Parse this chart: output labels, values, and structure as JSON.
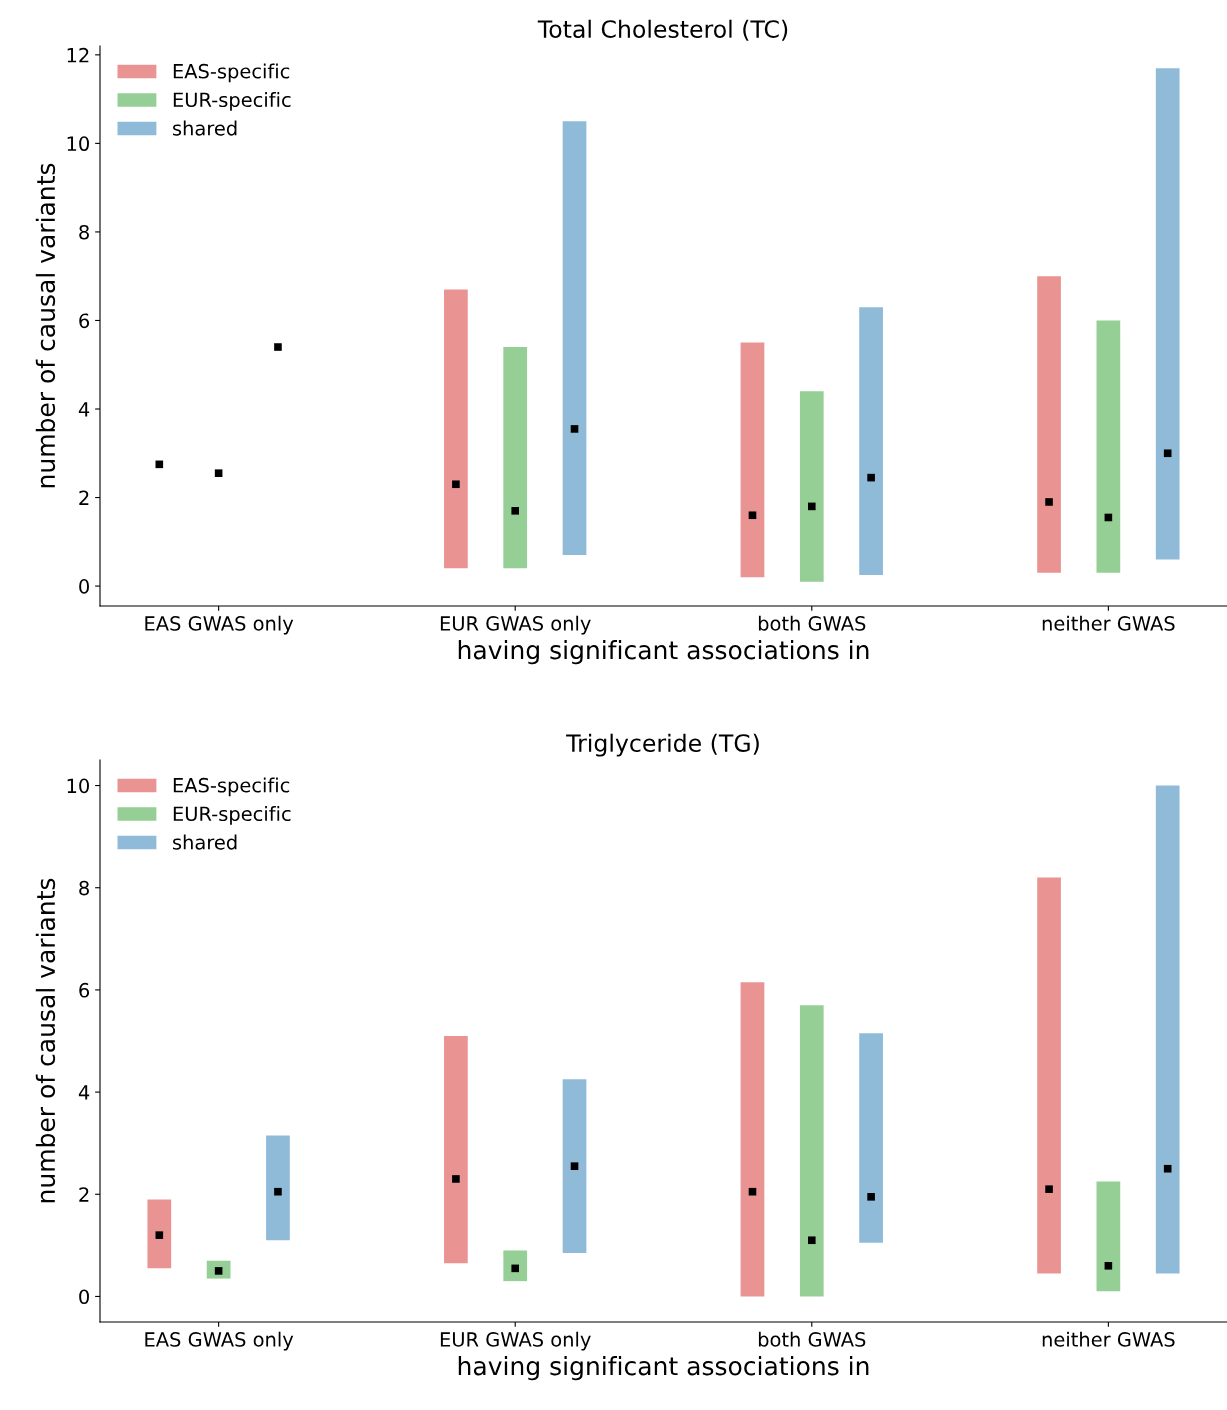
{
  "chart_data": [
    {
      "type": "bar",
      "title": "Total Cholesterol (TC)",
      "xlabel": "having significant associations in",
      "ylabel": "number of causal variants",
      "categories": [
        null,
        "EAS GWAS only",
        null,
        null,
        null,
        null,
        "EUR GWAS only",
        null,
        null,
        null,
        null,
        "both GWAS",
        null,
        null,
        null,
        null,
        "neither GWAS",
        null
      ],
      "ylim": [
        -0.45,
        12.2
      ],
      "yticks": [
        0,
        2,
        4,
        6,
        8,
        10,
        12
      ],
      "grid": false,
      "legend": "top left",
      "series": [
        {
          "name": "EAS-specific",
          "color": "#ea9393",
          "base": [
            null,
            null,
            null,
            null,
            null,
            0.4,
            null,
            null,
            null,
            null,
            0.2,
            null,
            null,
            null,
            null,
            0.3,
            null,
            null
          ],
          "values": [
            null,
            null,
            null,
            null,
            null,
            6.3,
            null,
            null,
            null,
            null,
            5.3,
            null,
            null,
            null,
            null,
            6.7,
            null,
            null
          ]
        },
        {
          "name": "EUR-specific",
          "color": "#95cf95",
          "base": [
            null,
            null,
            null,
            null,
            null,
            null,
            0.4,
            null,
            null,
            null,
            null,
            0.1,
            null,
            null,
            null,
            null,
            0.3,
            null
          ],
          "values": [
            null,
            null,
            null,
            null,
            null,
            null,
            5.0,
            null,
            null,
            null,
            null,
            4.3,
            null,
            null,
            null,
            null,
            5.7,
            null
          ]
        },
        {
          "name": "shared",
          "color": "#8fbbd9",
          "base": [
            null,
            null,
            null,
            null,
            null,
            null,
            null,
            0.7,
            null,
            null,
            null,
            null,
            0.25,
            null,
            null,
            null,
            null,
            0.6
          ],
          "values": [
            null,
            null,
            null,
            null,
            null,
            null,
            null,
            9.8,
            null,
            null,
            null,
            null,
            6.05,
            null,
            null,
            null,
            null,
            11.1
          ]
        },
        {
          "type": "scatter",
          "color": "#000000",
          "marker": "square",
          "values": [
            2.75,
            2.55,
            5.4,
            null,
            null,
            2.3,
            1.7,
            3.55,
            null,
            null,
            1.6,
            1.8,
            2.45,
            null,
            null,
            1.9,
            1.55,
            3.0
          ]
        }
      ]
    },
    {
      "type": "bar",
      "title": "Triglyceride (TG)",
      "xlabel": "having significant associations in",
      "ylabel": "number of causal variants",
      "categories": [
        null,
        "EAS GWAS only",
        null,
        null,
        null,
        null,
        "EUR GWAS only",
        null,
        null,
        null,
        null,
        "both GWAS",
        null,
        null,
        null,
        null,
        "neither GWAS",
        null
      ],
      "ylim": [
        -0.5,
        10.5
      ],
      "yticks": [
        0,
        2,
        4,
        6,
        8,
        10
      ],
      "grid": false,
      "legend": "top left",
      "series": [
        {
          "name": "EAS-specific",
          "color": "#ea9393",
          "base": [
            0.55,
            null,
            null,
            null,
            null,
            0.65,
            null,
            null,
            null,
            null,
            0.0,
            null,
            null,
            null,
            null,
            0.45,
            null,
            null
          ],
          "values": [
            1.35,
            null,
            null,
            null,
            null,
            4.45,
            null,
            null,
            null,
            null,
            6.15,
            null,
            null,
            null,
            null,
            7.75,
            null,
            null
          ]
        },
        {
          "name": "EUR-specific",
          "color": "#95cf95",
          "base": [
            null,
            0.35,
            null,
            null,
            null,
            null,
            0.3,
            null,
            null,
            null,
            null,
            0.0,
            null,
            null,
            null,
            null,
            0.1,
            null
          ],
          "values": [
            null,
            0.35,
            null,
            null,
            null,
            null,
            0.6,
            null,
            null,
            null,
            null,
            5.7,
            null,
            null,
            null,
            null,
            2.15,
            null
          ]
        },
        {
          "name": "shared",
          "color": "#8fbbd9",
          "base": [
            null,
            null,
            1.1,
            null,
            null,
            null,
            null,
            0.85,
            null,
            null,
            null,
            null,
            1.05,
            null,
            null,
            null,
            null,
            0.45
          ],
          "values": [
            null,
            null,
            2.05,
            null,
            null,
            null,
            null,
            3.4,
            null,
            null,
            null,
            null,
            4.1,
            null,
            null,
            null,
            null,
            9.55
          ]
        },
        {
          "type": "scatter",
          "color": "#000000",
          "marker": "square",
          "values": [
            1.2,
            0.5,
            2.05,
            null,
            null,
            2.3,
            0.55,
            2.55,
            null,
            null,
            2.05,
            1.1,
            1.95,
            null,
            null,
            2.1,
            0.6,
            2.5
          ]
        }
      ]
    }
  ]
}
